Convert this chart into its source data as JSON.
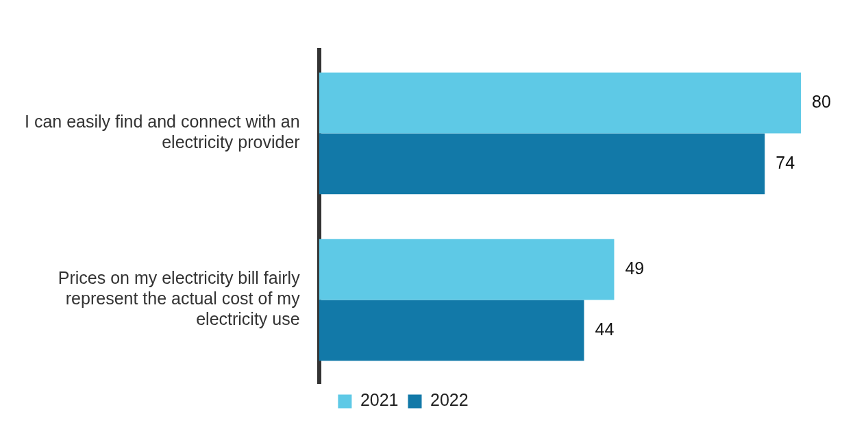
{
  "chart_data": {
    "type": "bar",
    "orientation": "horizontal",
    "categories": [
      "I can easily find and connect with an electricity provider",
      "Prices on my electricity bill fairly represent the actual cost of my electricity use"
    ],
    "series": [
      {
        "name": "2021",
        "color": "#5ec9e6",
        "values": [
          80,
          49
        ]
      },
      {
        "name": "2022",
        "color": "#1279a8",
        "values": [
          74,
          44
        ]
      }
    ],
    "data_labels": true,
    "legend": "bottom",
    "tick_labels": "y"
  }
}
